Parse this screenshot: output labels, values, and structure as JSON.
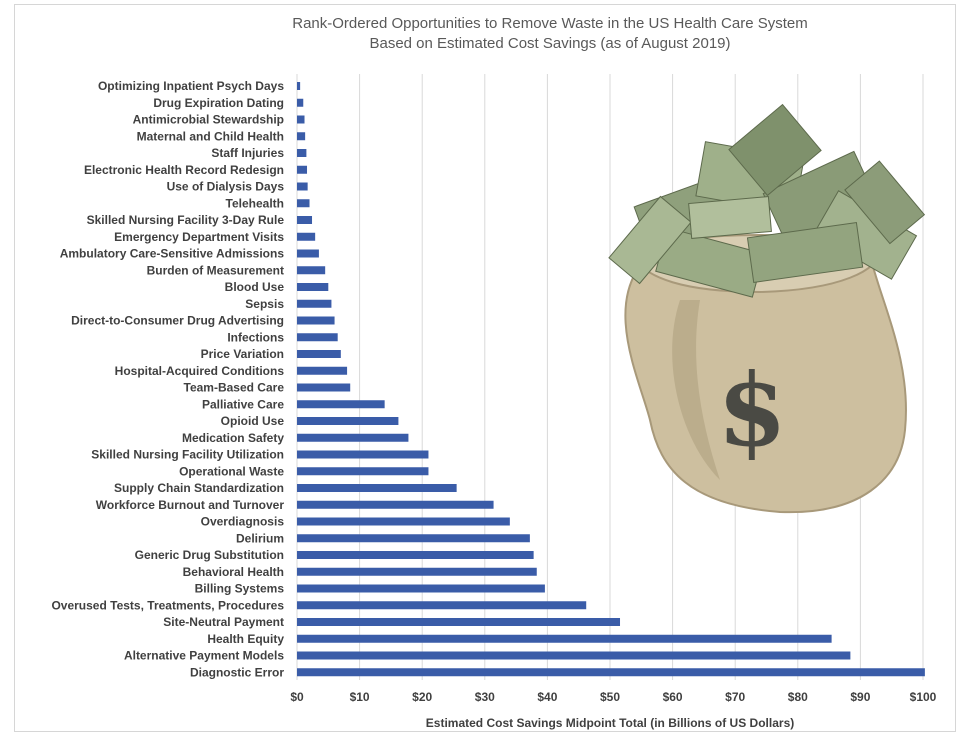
{
  "chart_data": {
    "type": "bar",
    "orientation": "horizontal",
    "title_line1": "Rank-Ordered Opportunities to Remove Waste in the US Health Care System",
    "title_line2": "Based on Estimated Cost Savings (as of August 2019)",
    "xlabel": "Estimated Cost Savings Midpoint Total (in Billions of US Dollars)",
    "xlim": [
      0,
      100
    ],
    "grid": true,
    "bar_color": "#3a5ca8",
    "x_ticks": [
      "$0",
      "$10",
      "$20",
      "$30",
      "$40",
      "$50",
      "$60",
      "$70",
      "$80",
      "$90",
      "$100"
    ],
    "categories": [
      "Optimizing Inpatient Psych Days",
      "Drug Expiration Dating",
      "Antimicrobial Stewardship",
      "Maternal and Child Health",
      "Staff Injuries",
      "Electronic Health Record Redesign",
      "Use of Dialysis Days",
      "Telehealth",
      "Skilled Nursing Facility 3-Day Rule",
      "Emergency Department Visits",
      "Ambulatory Care-Sensitive Admissions",
      "Burden of Measurement",
      "Blood Use",
      "Sepsis",
      "Direct-to-Consumer Drug Advertising",
      "Infections",
      "Price Variation",
      "Hospital-Acquired Conditions",
      "Team-Based Care",
      "Palliative Care",
      "Opioid Use",
      "Medication Safety",
      "Skilled Nursing Facility Utilization",
      "Operational Waste",
      "Supply Chain Standardization",
      "Workforce Burnout and Turnover",
      "Overdiagnosis",
      "Delirium",
      "Generic Drug Substitution",
      "Behavioral Health",
      "Billing Systems",
      "Overused Tests, Treatments, Procedures",
      "Site-Neutral Payment",
      "Health Equity",
      "Alternative Payment Models",
      "Diagnostic Error"
    ],
    "values": [
      0.5,
      1.0,
      1.2,
      1.3,
      1.5,
      1.6,
      1.7,
      2.0,
      2.4,
      2.9,
      3.5,
      4.5,
      5.0,
      5.5,
      6.0,
      6.5,
      7.0,
      8.0,
      8.5,
      14.0,
      16.2,
      17.8,
      21.0,
      21.0,
      25.5,
      31.4,
      34.0,
      37.2,
      37.8,
      38.3,
      39.6,
      46.2,
      51.6,
      85.4,
      88.4,
      100.3
    ]
  },
  "image": {
    "icon": "money-bag-icon",
    "bag_color": "#cdbf9f",
    "money_color": "#8fa07c",
    "symbol_color": "#4a4a44"
  }
}
